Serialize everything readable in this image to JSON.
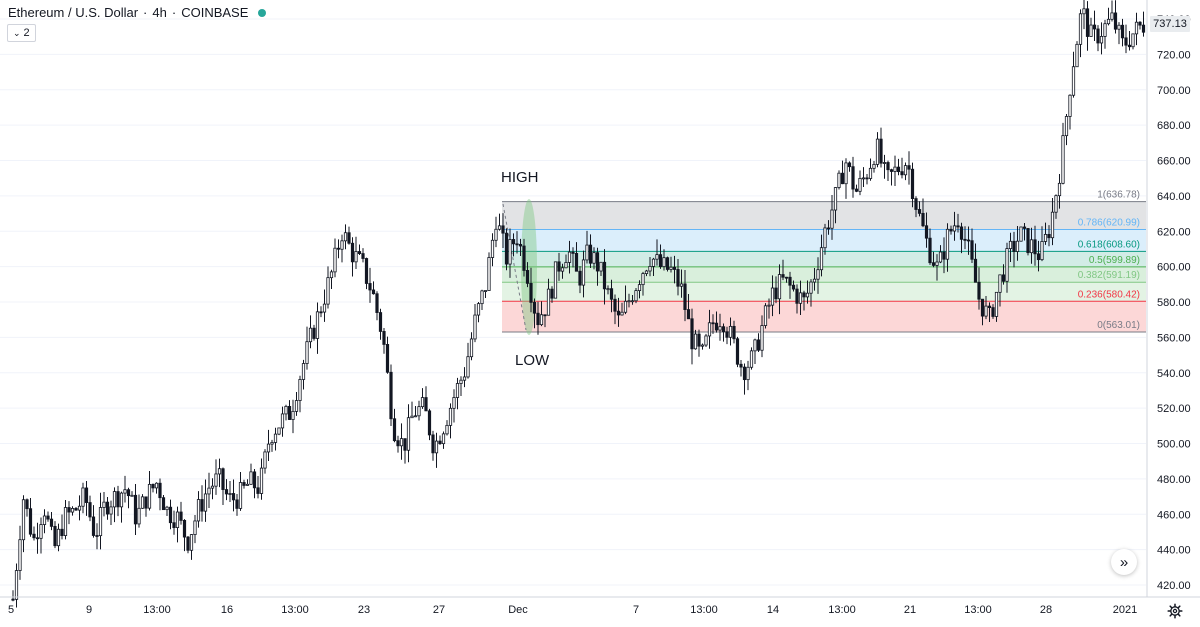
{
  "header": {
    "symbol": "Ethereum / U.S. Dollar",
    "sep": "·",
    "interval": "4h",
    "exchange": "COINBASE",
    "status_color": "#26a69a"
  },
  "interval_toggle": {
    "icon": "chevron-down-icon",
    "label": "2"
  },
  "last_price": "737.13",
  "chart_data": {
    "type": "candlestick",
    "ylim": [
      410,
      747
    ],
    "y_ticks": [
      "420.00",
      "440.00",
      "460.00",
      "480.00",
      "500.00",
      "520.00",
      "540.00",
      "560.00",
      "580.00",
      "600.00",
      "620.00",
      "640.00",
      "660.00",
      "680.00",
      "700.00",
      "720.00",
      "740.00"
    ],
    "x_ticks": [
      "5",
      "9",
      "13:00",
      "16",
      "13:00",
      "23",
      "27",
      "Dec",
      "7",
      "13:00",
      "14",
      "13:00",
      "21",
      "13:00",
      "28",
      "2021"
    ],
    "close_path": [
      412,
      470,
      445,
      465,
      440,
      458,
      462,
      470,
      448,
      466,
      470,
      475,
      458,
      470,
      478,
      462,
      458,
      445,
      462,
      475,
      480,
      468,
      470,
      478,
      475,
      505,
      512,
      518,
      540,
      560,
      578,
      596,
      620,
      608,
      600,
      585,
      560,
      510,
      498,
      518,
      520,
      498,
      512,
      528,
      542,
      570,
      590,
      628,
      605,
      618,
      598,
      570,
      580,
      600,
      610,
      592,
      608,
      600,
      582,
      568,
      582,
      595,
      606,
      600,
      598,
      588,
      560,
      548,
      568,
      572,
      558,
      542,
      548,
      568,
      586,
      592,
      586,
      580,
      596,
      620,
      638,
      660,
      642,
      652,
      668,
      648,
      655,
      660,
      632,
      612,
      598,
      618,
      628,
      608,
      582,
      570,
      592,
      608,
      618,
      612,
      606,
      625,
      660,
      710,
      745,
      728,
      734,
      740,
      725,
      732,
      737
    ],
    "fib_levels": [
      {
        "ratio": "1",
        "value": "636.78",
        "label": "1(636.78)",
        "line_color": "#787b86",
        "fill": "#e2e3e5"
      },
      {
        "ratio": "0.786",
        "value": "620.99",
        "label": "0.786(620.99)",
        "line_color": "#64b5f6",
        "fill": "#dbeefb"
      },
      {
        "ratio": "0.618",
        "value": "608.60",
        "label": "0.618(608.60)",
        "line_color": "#089981",
        "fill": "#d2ece6"
      },
      {
        "ratio": "0.5",
        "value": "599.89",
        "label": "0.5(599.89)",
        "line_color": "#4caf50",
        "fill": "#d9efdc"
      },
      {
        "ratio": "0.382",
        "value": "591.19",
        "label": "0.382(591.19)",
        "line_color": "#81c784",
        "fill": "#e3f3e4"
      },
      {
        "ratio": "0.236",
        "value": "580.42",
        "label": "0.236(580.42)",
        "line_color": "#f23645",
        "fill": "#fcd7d7"
      },
      {
        "ratio": "0",
        "value": "563.01",
        "label": "0(563.01)",
        "line_color": "#787b86",
        "fill": null
      }
    ],
    "annotations": {
      "high": "HIGH",
      "low": "LOW"
    },
    "colors": {
      "up": "#26a69a",
      "down": "#131722",
      "candle": "#131722",
      "axis_text": "#131722",
      "grid": "#f0f3fa"
    }
  },
  "controls": {
    "scroll_icon": "double-chevron-right-icon",
    "scroll_glyph": "»",
    "settings_icon": "gear-icon"
  }
}
